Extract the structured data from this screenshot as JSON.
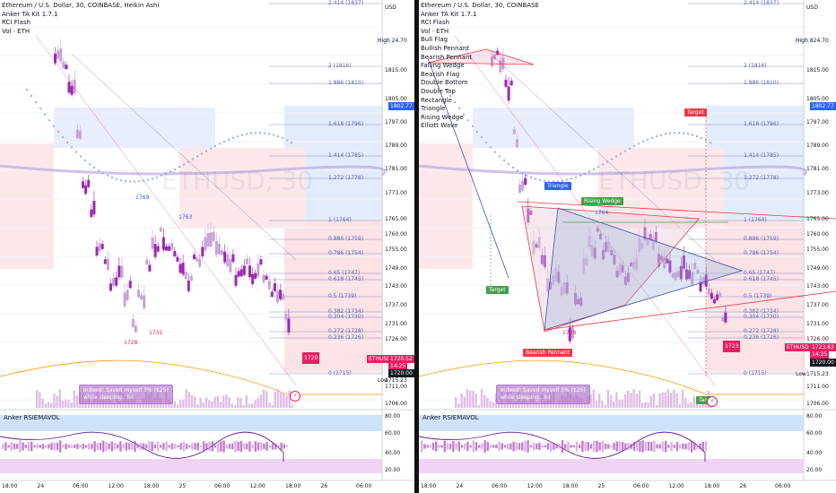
{
  "left": {
    "legend": [
      "Ethereum / U.S. Dollar, 30, COINBASE, Heikin Ashi",
      "Anker TA Kit 1.7.1",
      "RCI Flash",
      "Vol · ETH"
    ],
    "fib_labels": [
      {
        "text": "2.414 (1837)",
        "y": 4
      },
      {
        "text": "2 (1816)",
        "y": 74
      },
      {
        "text": "1.886 (1810)",
        "y": 93
      },
      {
        "text": "1.618 (1796)",
        "y": 139
      },
      {
        "text": "1.414 (1785)",
        "y": 174
      },
      {
        "text": "1.272 (1778)",
        "y": 199
      },
      {
        "text": "1 (1764)",
        "y": 246
      },
      {
        "text": "0.886 (1759)",
        "y": 267
      },
      {
        "text": "0.786 (1754)",
        "y": 283
      },
      {
        "text": "0.65 (1747)",
        "y": 305
      },
      {
        "text": "0.618 (1745)",
        "y": 312
      },
      {
        "text": "0.5 (1739)",
        "y": 331
      },
      {
        "text": "0.382 (1734)",
        "y": 348
      },
      {
        "text": "0.304 (1730)",
        "y": 354
      },
      {
        "text": "0.272 (1728)",
        "y": 370
      },
      {
        "text": "0.236 (1726)",
        "y": 377
      },
      {
        "text": "0 (1715)",
        "y": 417
      }
    ],
    "price_axis": [
      {
        "text": "USD",
        "y": 9
      },
      {
        "text": "1824.70",
        "y": 46
      },
      {
        "text": "1815.00",
        "y": 79
      },
      {
        "text": "1805.00",
        "y": 111
      },
      {
        "text": "1797.00",
        "y": 137
      },
      {
        "text": "1789.00",
        "y": 163
      },
      {
        "text": "1781.00",
        "y": 189
      },
      {
        "text": "1773.00",
        "y": 216
      },
      {
        "text": "1765.00",
        "y": 245
      },
      {
        "text": "1760.00",
        "y": 262
      },
      {
        "text": "1755.00",
        "y": 279
      },
      {
        "text": "1749.00",
        "y": 300
      },
      {
        "text": "1743.00",
        "y": 320
      },
      {
        "text": "1737.00",
        "y": 341
      },
      {
        "text": "1731.00",
        "y": 362
      },
      {
        "text": "1726.00",
        "y": 379
      },
      {
        "text": "1715.23",
        "y": 425
      },
      {
        "text": "1711.00",
        "y": 432
      },
      {
        "text": "1706.00",
        "y": 451
      }
    ],
    "high_label": "High",
    "low_label": "Low",
    "current_price": "1802.77",
    "last_price": "1720.52",
    "countdown": "14:25",
    "last_price2": "1720.00",
    "symbol_tag": "ETHUSD",
    "price_badge": "1720",
    "pivots": [
      "1769",
      "1763",
      "1728",
      "1731"
    ],
    "comment": [
      "Indeed! Saved myself 5% ($25)",
      "while sleeping.. lol"
    ],
    "watermark": "ETHUSD, 30",
    "sub_title": "Anker RSIEMAVOL",
    "sub_axis": [
      "80.00",
      "60.00",
      "40.00",
      "20.00"
    ],
    "time_axis": [
      "18:00",
      "24",
      "06:00",
      "12:00",
      "18:00",
      "25",
      "06:00",
      "12:00",
      "18:00",
      "26",
      "06:00"
    ]
  },
  "right": {
    "legend": [
      "Ethereum / U.S. Dollar, 30, COINBASE",
      "Anker TA Kit 1.7.1",
      "RCI Flash",
      "Vol · ETH",
      "Bull Flag",
      "Bullish Pennant",
      "Bearish Pennant",
      "Falling Wedge",
      "Bearish Flag",
      "Double Bottom",
      "Double Top",
      "Rectangle",
      "Triangle",
      "Rising Wedge",
      "Elliott Wave"
    ],
    "fib_labels": [
      {
        "text": "2.414 (1837)",
        "y": 4
      },
      {
        "text": "2 (1816)",
        "y": 74
      },
      {
        "text": "1.886 (1810)",
        "y": 93
      },
      {
        "text": "1.618 (1796)",
        "y": 139
      },
      {
        "text": "1.414 (1785)",
        "y": 174
      },
      {
        "text": "1.272 (1778)",
        "y": 199
      },
      {
        "text": "1 (1764)",
        "y": 246
      },
      {
        "text": "0.886 (1759)",
        "y": 267
      },
      {
        "text": "0.786 (1754)",
        "y": 283
      },
      {
        "text": "0.65 (1747)",
        "y": 305
      },
      {
        "text": "0.618 (1745)",
        "y": 312
      },
      {
        "text": "0.5 (1739)",
        "y": 331
      },
      {
        "text": "0.382 (1734)",
        "y": 348
      },
      {
        "text": "0.304 (1730)",
        "y": 354
      },
      {
        "text": "0.272 (1728)",
        "y": 370
      },
      {
        "text": "0.236 (1726)",
        "y": 377
      },
      {
        "text": "0 (1715)",
        "y": 417
      }
    ],
    "price_axis": [
      {
        "text": "USD",
        "y": 9
      },
      {
        "text": "1824.70",
        "y": 46
      },
      {
        "text": "1815.00",
        "y": 79
      },
      {
        "text": "1805.00",
        "y": 111
      },
      {
        "text": "1797.00",
        "y": 137
      },
      {
        "text": "1789.00",
        "y": 163
      },
      {
        "text": "1781.00",
        "y": 189
      },
      {
        "text": "1773.00",
        "y": 216
      },
      {
        "text": "1765.00",
        "y": 245
      },
      {
        "text": "1760.00",
        "y": 262
      },
      {
        "text": "1755.00",
        "y": 279
      },
      {
        "text": "1749.00",
        "y": 300
      },
      {
        "text": "1743.00",
        "y": 320
      },
      {
        "text": "1737.00",
        "y": 341
      },
      {
        "text": "1731.00",
        "y": 362
      },
      {
        "text": "1726.00",
        "y": 379
      },
      {
        "text": "1715.23",
        "y": 418
      },
      {
        "text": "1711.00",
        "y": 432
      },
      {
        "text": "1706.00",
        "y": 451
      }
    ],
    "high_label": "High",
    "low_label": "Low",
    "current_price": "1802.77",
    "last_price": "1723.83",
    "countdown": "14:25",
    "last_price2": "1720.00",
    "symbol_tag": "ETHUSD",
    "price_badge": "1723",
    "pattern_labels": {
      "triangle": "Triangle",
      "rising_wedge": "Rising Wedge",
      "target1": "Target",
      "target2": "Target",
      "target3": "Targ",
      "bearish_pennant": "Bearish Pennant"
    },
    "pivots": [
      "1764",
      "1728"
    ],
    "comment": [
      "Indeed! Saved myself 5% ($25)",
      "while sleeping.. lol"
    ],
    "watermark": "ETHUSD, 30",
    "sub_title": "Anker RSIEMAVOL",
    "sub_axis": [
      "80.00",
      "60.00",
      "40.00",
      "20.00"
    ],
    "time_axis": [
      "18:00",
      "24",
      "06:00",
      "12:00",
      "18:00",
      "25",
      "06:00",
      "12:00",
      "18:00",
      "26",
      "06:00"
    ]
  },
  "colors": {
    "bull": "#c8a3d6",
    "bear": "#9c27b0",
    "blue_box": "#e3ecfb",
    "red_box": "#fbe3e6",
    "fib_line": "#5b66b8",
    "accent_blue": "#2962ff",
    "accent_red": "#e91e63",
    "pattern_red": "#f23645",
    "pattern_blue": "#3f51b5"
  }
}
